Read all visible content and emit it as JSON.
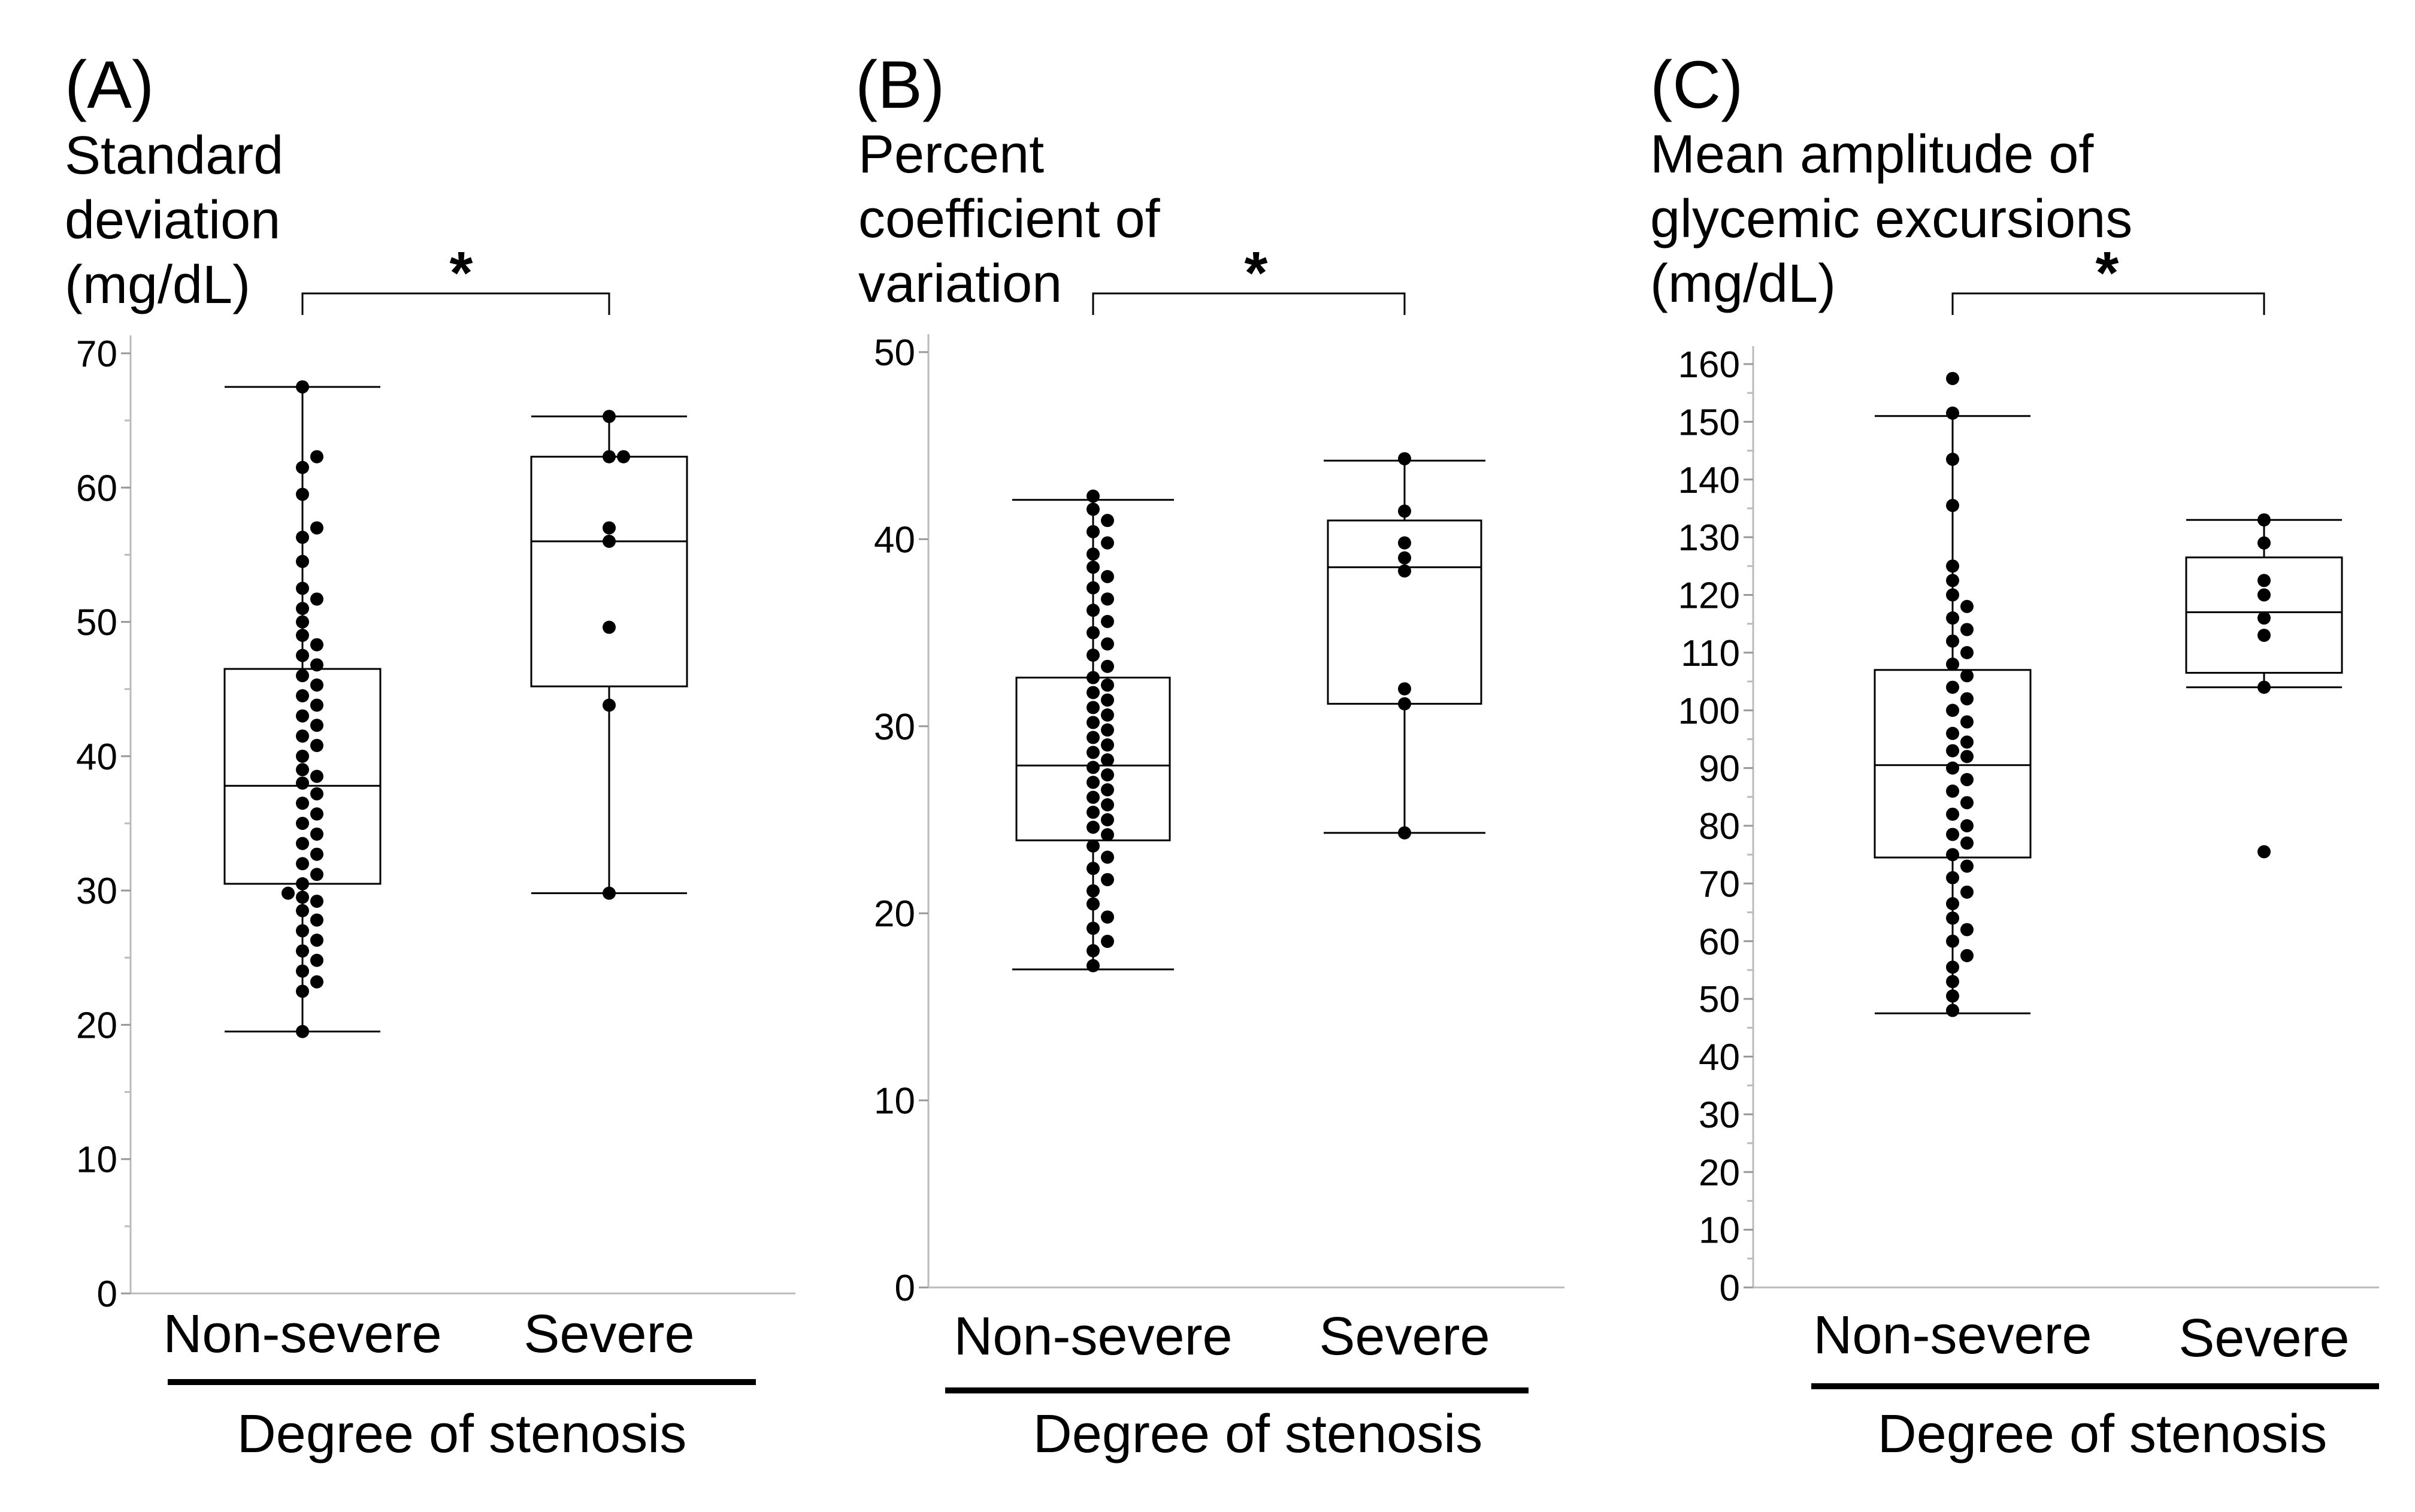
{
  "chart_data": [
    {
      "panel": "(A)",
      "type": "box+dotplot",
      "ylabel_lines": [
        "Standard",
        "deviation",
        "(mg/dL)"
      ],
      "yticks": [
        0,
        10,
        20,
        30,
        40,
        50,
        60,
        70
      ],
      "ylim": [
        0,
        70
      ],
      "minor_step": 5,
      "xlabel": "Degree of stenosis",
      "significance": "*",
      "groups": [
        {
          "name": "Non-severe",
          "box": {
            "min": 19.5,
            "q1": 30.5,
            "median": 37.8,
            "q3": 46.5,
            "max": 67.5
          },
          "points": [
            19.5,
            22.5,
            23.2,
            24.0,
            24.8,
            25.5,
            26.3,
            27.0,
            27.8,
            28.5,
            29.2,
            29.5,
            29.8,
            30.5,
            31.2,
            32.0,
            32.7,
            33.5,
            34.2,
            35.0,
            35.7,
            36.5,
            37.2,
            38.0,
            38.5,
            39.0,
            40.0,
            40.8,
            41.5,
            42.3,
            43.0,
            43.8,
            44.5,
            45.3,
            46.0,
            46.8,
            47.5,
            48.3,
            49.0,
            50.0,
            51.0,
            51.7,
            52.5,
            54.5,
            56.3,
            57.0,
            59.5,
            61.5,
            62.3,
            67.5
          ]
        },
        {
          "name": "Severe",
          "box": {
            "min": 29.8,
            "q1": 45.2,
            "median": 56.0,
            "q3": 62.3,
            "max": 65.3
          },
          "points": [
            29.8,
            43.8,
            49.6,
            56.0,
            57.0,
            62.3,
            62.3,
            65.3
          ]
        }
      ]
    },
    {
      "panel": "(B)",
      "type": "box+dotplot",
      "ylabel_lines": [
        "Percent",
        "coefficient of",
        "variation"
      ],
      "yticks": [
        0,
        10,
        20,
        30,
        40,
        50
      ],
      "ylim": [
        0,
        50
      ],
      "minor_step": null,
      "xlabel": "Degree of stenosis",
      "significance": "*",
      "groups": [
        {
          "name": "Non-severe",
          "box": {
            "min": 17.0,
            "q1": 23.9,
            "median": 27.9,
            "q3": 32.6,
            "max": 42.1
          },
          "points": [
            17.2,
            18.0,
            18.5,
            19.2,
            19.8,
            20.5,
            21.2,
            21.8,
            22.4,
            23.0,
            23.6,
            24.2,
            24.6,
            25.0,
            25.4,
            25.8,
            26.2,
            26.6,
            27.0,
            27.4,
            27.8,
            28.2,
            28.6,
            29.0,
            29.4,
            29.8,
            30.2,
            30.6,
            31.0,
            31.4,
            31.8,
            32.2,
            32.6,
            33.2,
            33.8,
            34.4,
            35.0,
            35.6,
            36.2,
            36.8,
            37.4,
            38.0,
            38.5,
            39.2,
            39.8,
            40.4,
            41.0,
            41.6,
            42.3
          ]
        },
        {
          "name": "Severe",
          "box": {
            "min": 24.3,
            "q1": 31.2,
            "median": 38.5,
            "q3": 41.0,
            "max": 44.2
          },
          "points": [
            24.3,
            31.2,
            32.0,
            38.3,
            39.0,
            39.8,
            41.5,
            44.3
          ]
        }
      ]
    },
    {
      "panel": "(C)",
      "type": "box+dotplot",
      "ylabel_lines": [
        "Mean amplitude of",
        "glycemic excursions",
        "(mg/dL)"
      ],
      "yticks": [
        0,
        10,
        20,
        30,
        40,
        50,
        60,
        70,
        80,
        90,
        100,
        110,
        120,
        130,
        140,
        150,
        160
      ],
      "ylim": [
        0,
        160
      ],
      "minor_step": 5,
      "xlabel": "Degree of stenosis",
      "significance": "*",
      "groups": [
        {
          "name": "Non-severe",
          "box": {
            "min": 47.5,
            "q1": 74.5,
            "median": 90.5,
            "q3": 107.0,
            "max": 151.0
          },
          "points": [
            48.0,
            50.5,
            53.0,
            55.5,
            57.5,
            60.0,
            62.0,
            64.0,
            66.5,
            68.5,
            71.0,
            73.0,
            75.0,
            77.0,
            78.5,
            80.0,
            82.0,
            84.0,
            86.0,
            88.0,
            90.0,
            92.0,
            93.0,
            94.5,
            96.0,
            98.0,
            100.0,
            102.0,
            104.0,
            106.0,
            108.0,
            110.0,
            112.0,
            114.0,
            116.0,
            118.0,
            120.0,
            122.5,
            125.0,
            135.5,
            143.5,
            151.5,
            157.5
          ]
        },
        {
          "name": "Severe",
          "box": {
            "min": 104.0,
            "q1": 106.5,
            "median": 117.0,
            "q3": 126.5,
            "max": 133.0
          },
          "points": [
            75.5,
            104.0,
            113.0,
            116.0,
            120.0,
            122.5,
            129.0,
            133.0
          ]
        }
      ]
    }
  ]
}
